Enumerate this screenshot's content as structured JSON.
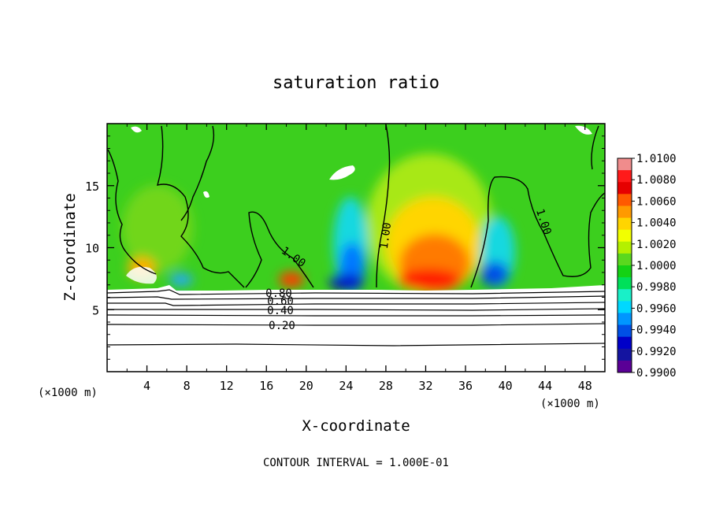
{
  "chart_data": {
    "type": "heatmap",
    "title": "saturation ratio",
    "xlabel": "X-coordinate",
    "ylabel": "Z-coordinate",
    "x_unit": "(×1000 m)",
    "z_unit": "(×1000 m)",
    "xlim": [
      0,
      50
    ],
    "ylim": [
      0,
      20
    ],
    "x_ticks": [
      "4",
      "8",
      "12",
      "16",
      "20",
      "24",
      "28",
      "32",
      "36",
      "40",
      "44",
      "48"
    ],
    "y_ticks": [
      "5",
      "10",
      "15"
    ],
    "footer": "CONTOUR INTERVAL = 1.000E-01",
    "colorbar": {
      "labels": [
        "1.0100",
        "1.0080",
        "1.0060",
        "1.0040",
        "1.0020",
        "1.0000",
        "0.9980",
        "0.9960",
        "0.9940",
        "0.9920",
        "0.9900"
      ],
      "colors": [
        "#f08c8c",
        "#ff1a1a",
        "#e60000",
        "#ff5a00",
        "#ff9a00",
        "#ffd500",
        "#f2ff00",
        "#b4f000",
        "#5ad81e",
        "#14d214",
        "#00e05a",
        "#19f0c8",
        "#00d8ff",
        "#0096ff",
        "#0050e6",
        "#0000c8",
        "#1414a0",
        "#5a0096"
      ]
    },
    "contour_labels": [
      "1.00",
      "1.00",
      "1.00",
      "0.80",
      "0.60",
      "0.40",
      "0.20"
    ]
  }
}
